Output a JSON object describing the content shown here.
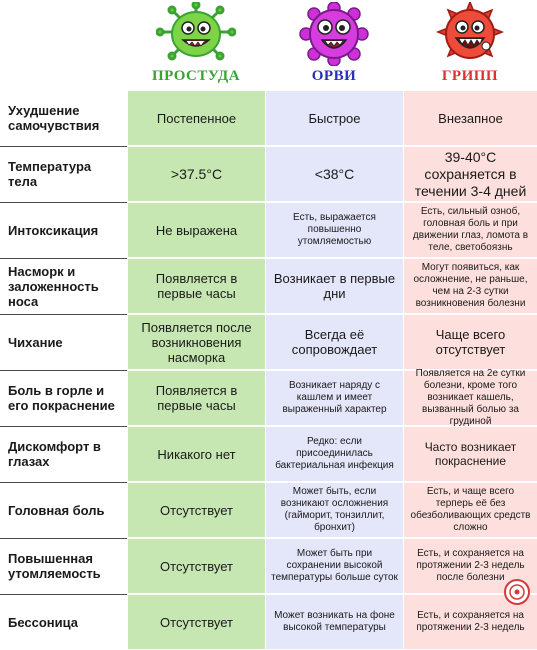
{
  "headers": {
    "cold": "ПРОСТУДА",
    "orvi": "ОРВИ",
    "flu": "ГРИПП"
  },
  "icons": {
    "cold": "green-virus-icon",
    "orvi": "purple-virus-icon",
    "flu": "red-virus-icon",
    "stamp": "red-seal-icon"
  },
  "colors": {
    "cold_title": "#3aa334",
    "orvi_title": "#2c2fb8",
    "flu_title": "#d83232",
    "cold_col": "#c7e7b2",
    "orvi_col": "#e4e6fa",
    "flu_col": "#fde0dd"
  },
  "rows": [
    {
      "label": "Ухудшение самочувствия",
      "cold": "Постепенное",
      "orvi": "Быстрое",
      "flu": "Внезапное"
    },
    {
      "label": "Температура тела",
      "cold": ">37.5°С",
      "orvi": "<38°С",
      "flu": "39-40°С сохраняется в течении 3-4 дней"
    },
    {
      "label": "Интоксикация",
      "cold": "Не выражена",
      "orvi": "Есть, выражается повышенно утомляемостью",
      "flu": "Есть, сильный озноб, головная боль и при движении глаз, ломота в теле, светобоязнь"
    },
    {
      "label": "Насморк и заложенность носа",
      "cold": "Появляется в первые часы",
      "orvi": "Возникает в первые дни",
      "flu": "Могут появиться, как осложнение, не раньше, чем на 2-3 сутки возникновения болезни"
    },
    {
      "label": "Чихание",
      "cold": "Появляется после возникновения насморка",
      "orvi": "Всегда её сопровождает",
      "flu": "Чаще всего отсутствует"
    },
    {
      "label": "Боль в горле и его покраснение",
      "cold": "Появляется в первые часы",
      "orvi": "Возникает наряду с кашлем и имеет выраженный характер",
      "flu": "Появляется на 2е сутки болезни, кроме того возникает кашель, вызванный болью за грудиной"
    },
    {
      "label": "Дискомфорт в глазах",
      "cold": "Никакого нет",
      "orvi": "Редко: если присоединилась бактериальная инфекция",
      "flu": "Часто возникает покраснение"
    },
    {
      "label": "Головная боль",
      "cold": "Отсутствует",
      "orvi": "Может быть, если возникают осложнения (гайморит, тонзиллит, бронхит)",
      "flu": "Есть, и чаще всего терперь её без обезболивающих средств сложно"
    },
    {
      "label": "Повышенная утомляемость",
      "cold": "Отсутствует",
      "orvi": "Может быть при сохранении высокой температуры больше суток",
      "flu": "Есть, и сохраняется на протяжении 2-3 недель после болезни"
    },
    {
      "label": "Бессоница",
      "cold": "Отсутствует",
      "orvi": "Может возникать на фоне высокой температуры",
      "flu": "Есть, и сохраняется на протяжении 2-3 недель"
    }
  ]
}
